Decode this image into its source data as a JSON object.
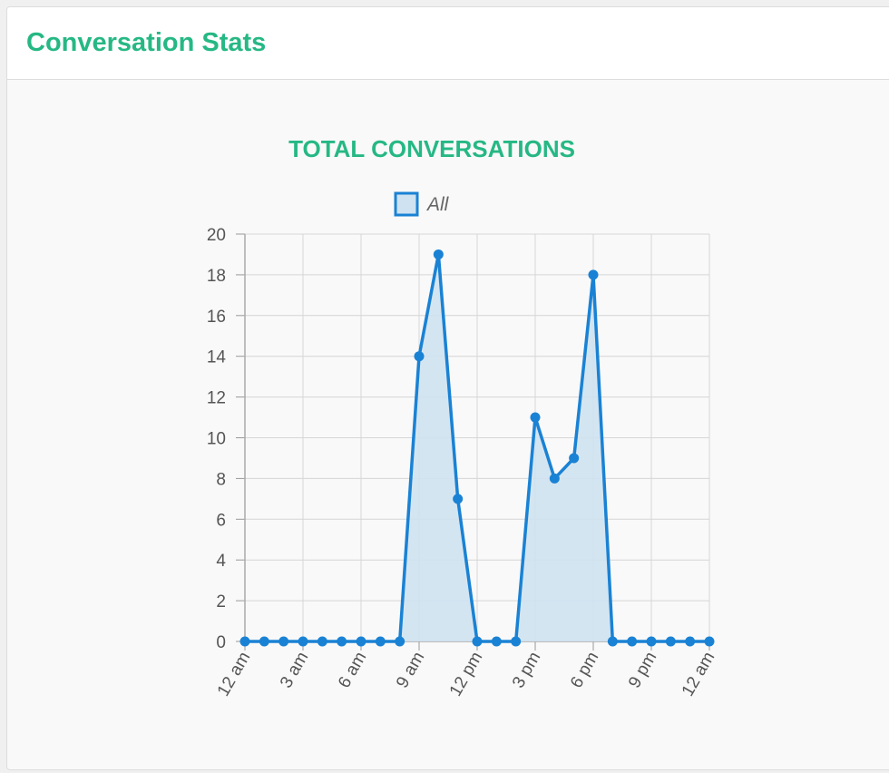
{
  "panel": {
    "title": "Conversation Stats"
  },
  "colors": {
    "title": "#26b884",
    "line": "#1a82d4",
    "fill": "#cfe2f1",
    "grid": "#d6d6d6"
  },
  "chart_data": {
    "type": "area",
    "title": "TOTAL CONVERSATIONS",
    "xlabel": "",
    "ylabel": "",
    "ylim": [
      0,
      20
    ],
    "y_ticks": [
      0,
      2,
      4,
      6,
      8,
      10,
      12,
      14,
      16,
      18,
      20
    ],
    "x_tick_labels": [
      "12 am",
      "3 am",
      "6 am",
      "9 am",
      "12 pm",
      "3 pm",
      "6 pm",
      "9 pm",
      "12 am"
    ],
    "grid": true,
    "legend": "top-center",
    "series": [
      {
        "name": "All",
        "values": [
          0,
          0,
          0,
          0,
          0,
          0,
          0,
          0,
          0,
          14,
          19,
          7,
          0,
          0,
          0,
          11,
          8,
          9,
          18,
          0,
          0,
          0,
          0,
          0,
          0
        ]
      }
    ]
  }
}
